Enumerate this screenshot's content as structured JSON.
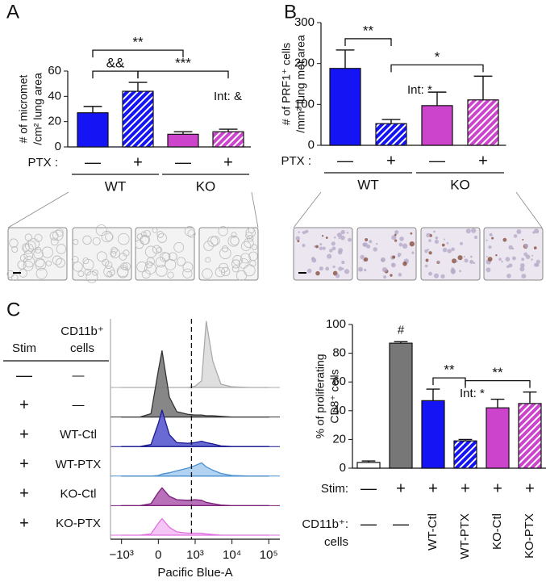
{
  "chart_data": [
    {
      "type": "bar",
      "panel": "A",
      "ylabel": [
        "# of micromet",
        "/cm² lung area"
      ],
      "rows": [
        {
          "label": [
            "PTX :"
          ],
          "values": [
            "—",
            "+",
            "—",
            "+"
          ]
        }
      ],
      "groups": [
        {
          "name": "WT",
          "span": [
            0,
            1
          ]
        },
        {
          "name": "KO",
          "span": [
            2,
            3
          ]
        }
      ],
      "values": [
        27,
        44,
        10,
        12
      ],
      "errors": [
        5,
        7,
        2,
        2
      ],
      "colors": [
        "#1414f5",
        "#1414f5",
        "#cc44cc",
        "#cc44cc"
      ],
      "hatched": [
        false,
        true,
        false,
        true
      ],
      "ylim": [
        0,
        60
      ],
      "yticks": [
        0,
        20,
        40,
        60
      ],
      "brackets": [
        {
          "label": "&&",
          "from": 0,
          "to": 1
        },
        {
          "label": "***",
          "from": 1,
          "to": 3
        },
        {
          "label": "**",
          "from": 0,
          "to": 2
        }
      ],
      "note": "Int: &"
    },
    {
      "type": "bar",
      "panel": "B",
      "ylabel": [
        "# of PRF1⁺ cells",
        "/mm² lung met area"
      ],
      "rows": [
        {
          "label": [
            "PTX :"
          ],
          "values": [
            "—",
            "+",
            "—",
            "+"
          ]
        }
      ],
      "groups": [
        {
          "name": "WT",
          "span": [
            0,
            1
          ]
        },
        {
          "name": "KO",
          "span": [
            2,
            3
          ]
        }
      ],
      "values": [
        188,
        53,
        97,
        111
      ],
      "errors": [
        45,
        10,
        33,
        58
      ],
      "colors": [
        "#1414f5",
        "#1414f5",
        "#cc44cc",
        "#cc44cc"
      ],
      "hatched": [
        false,
        true,
        false,
        true
      ],
      "ylim": [
        0,
        300
      ],
      "yticks": [
        0,
        100,
        200,
        300
      ],
      "brackets": [
        {
          "label": "**",
          "from": 0,
          "to": 1
        },
        {
          "label": "*",
          "from": 1,
          "to": 3
        }
      ],
      "note": "Int: *"
    },
    {
      "type": "density",
      "panel": "C",
      "stim_label": "Stim",
      "cells_label": [
        "CD11b⁺",
        "cells"
      ],
      "xlabel": "Pacific Blue-A",
      "x": [
        -1000,
        -500,
        -200,
        0,
        100,
        300,
        500,
        800,
        1000,
        1500,
        2000,
        3000,
        5000,
        10000,
        30000,
        100000
      ],
      "xlim": [
        -1300,
        200000
      ],
      "xticks": [
        {
          "value": -1000,
          "label": "−10³"
        },
        0,
        {
          "value": 1000,
          "label": "10³"
        },
        {
          "value": 10000,
          "label": "10⁴"
        },
        {
          "value": 100000,
          "label": "10⁵"
        }
      ],
      "gate": 900,
      "series": [
        {
          "stim": "—",
          "cells": "—",
          "color": "#aaaaaa",
          "fill": "#dcdcdc",
          "values": [
            0,
            0,
            0,
            0,
            0,
            0,
            0,
            0,
            2,
            10,
            100,
            40,
            5,
            1,
            0,
            0
          ]
        },
        {
          "stim": "+",
          "cells": "—",
          "color": "#333333",
          "fill": "#7a7a7a",
          "values": [
            0,
            0,
            5,
            70,
            100,
            30,
            8,
            4,
            3,
            3,
            2,
            2,
            1,
            0,
            0,
            0
          ]
        },
        {
          "stim": "+",
          "cells": "WT-Ctl",
          "color": "#1a1a90",
          "fill": "#5a5ad0",
          "values": [
            0,
            0,
            3,
            35,
            55,
            18,
            6,
            5,
            6,
            8,
            6,
            4,
            1,
            0,
            0,
            0
          ]
        },
        {
          "stim": "+",
          "cells": "WT-PTX",
          "color": "#4a90d0",
          "fill": "#a8cdf0",
          "values": [
            0,
            0,
            0,
            1,
            3,
            5,
            8,
            12,
            16,
            20,
            14,
            9,
            4,
            1,
            0,
            0
          ]
        },
        {
          "stim": "+",
          "cells": "KO-Ctl",
          "color": "#7a207a",
          "fill": "#b060b0",
          "values": [
            0,
            0,
            3,
            20,
            27,
            14,
            9,
            8,
            9,
            8,
            5,
            3,
            1,
            0,
            0,
            0
          ]
        },
        {
          "stim": "+",
          "cells": "KO-PTX",
          "color": "#e070e0",
          "fill": "#f4c0f4",
          "values": [
            0,
            0,
            2,
            18,
            25,
            12,
            5,
            3,
            3,
            3,
            2,
            1,
            0,
            0,
            0,
            0
          ]
        }
      ]
    },
    {
      "type": "bar",
      "ylabel": [
        "% of proliferating",
        "CD8⁺ cells"
      ],
      "rows": [
        {
          "label": [
            "Stim:"
          ],
          "values": [
            "—",
            "+",
            "+",
            "+",
            "+",
            "+"
          ]
        },
        {
          "label": [
            "CD11b⁺:",
            "cells"
          ],
          "values": [
            "—",
            "—",
            "WT-Ctl",
            "WT-PTX",
            "KO-Ctl",
            "KO-PTX"
          ]
        }
      ],
      "values": [
        4,
        87,
        47,
        19,
        42,
        45
      ],
      "errors": [
        1,
        1,
        8,
        1,
        6,
        8
      ],
      "colors": [
        "#ffffff",
        "#777777",
        "#1414f5",
        "#1414f5",
        "#cc44cc",
        "#cc44cc"
      ],
      "hatched": [
        false,
        false,
        false,
        true,
        false,
        true
      ],
      "ylim": [
        0,
        100
      ],
      "yticks": [
        0,
        20,
        40,
        60,
        80,
        100
      ],
      "brackets": [
        {
          "label": "**",
          "from": 2,
          "to": 3
        },
        {
          "label": "**",
          "from": 3,
          "to": 5
        }
      ],
      "symbols": [
        {
          "label": "#",
          "at": 1
        }
      ],
      "note": "Int: *"
    }
  ]
}
